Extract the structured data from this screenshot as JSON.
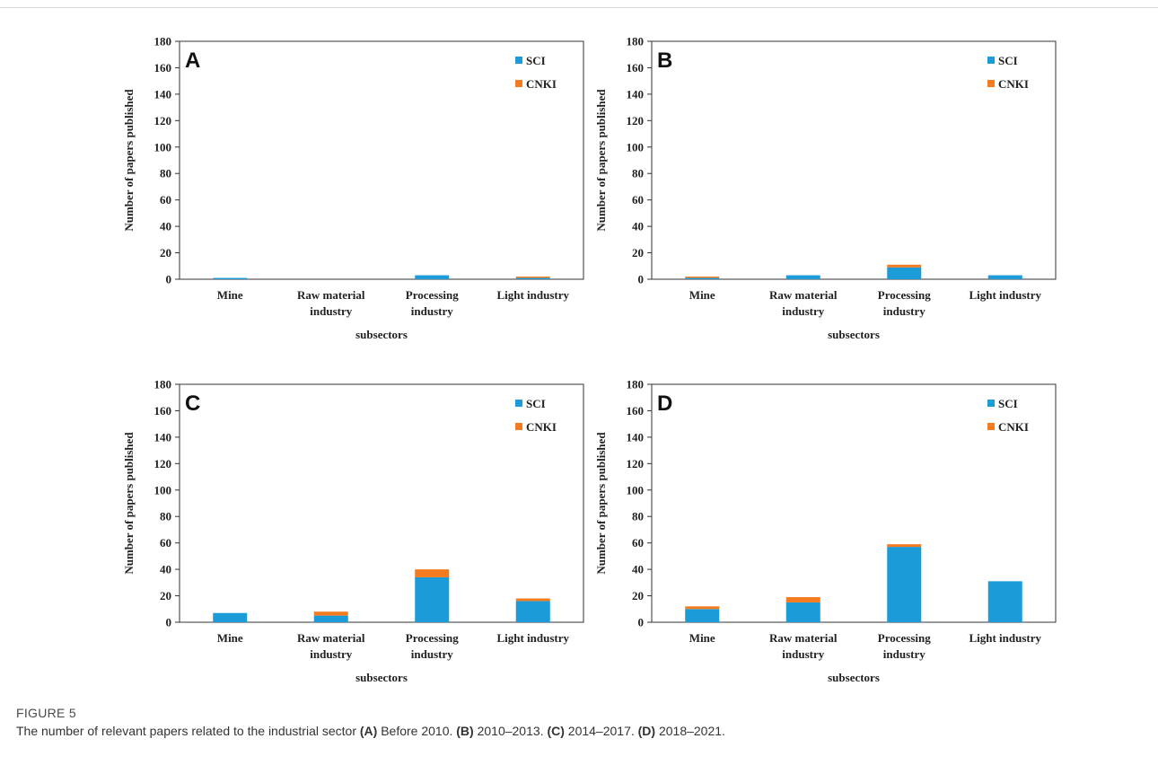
{
  "figure": {
    "label": "FIGURE 5",
    "caption_parts": [
      {
        "text": "The number of relevant papers related to the industrial sector ",
        "bold": false
      },
      {
        "text": "(A)",
        "bold": true
      },
      {
        "text": " Before 2010. ",
        "bold": false
      },
      {
        "text": "(B)",
        "bold": true
      },
      {
        "text": " 2010–2013. ",
        "bold": false
      },
      {
        "text": "(C)",
        "bold": true
      },
      {
        "text": " 2014–2017. ",
        "bold": false
      },
      {
        "text": "(D)",
        "bold": true
      },
      {
        "text": " 2018–2021.",
        "bold": false
      }
    ]
  },
  "colors": {
    "SCI": "#1b9bd7",
    "CNKI": "#f47b20",
    "axis": "#333333"
  },
  "chart_data": [
    {
      "type": "bar",
      "stacked": true,
      "panel_letter": "A",
      "categories": [
        [
          "Mine"
        ],
        [
          "Raw material",
          "industry"
        ],
        [
          "Processing",
          "industry"
        ],
        [
          "Light industry"
        ]
      ],
      "series": [
        {
          "name": "SCI",
          "values": [
            1,
            0,
            3,
            1
          ]
        },
        {
          "name": "CNKI",
          "values": [
            0,
            0,
            0,
            1
          ]
        }
      ],
      "xlabel": "subsectors",
      "ylabel": "Number of papers published",
      "ylim": [
        0,
        180
      ],
      "yticks": [
        0,
        20,
        40,
        60,
        80,
        100,
        120,
        140,
        160,
        180
      ],
      "legend": "top-right",
      "grid": false
    },
    {
      "type": "bar",
      "stacked": true,
      "panel_letter": "B",
      "categories": [
        [
          "Mine"
        ],
        [
          "Raw material",
          "industry"
        ],
        [
          "Processing",
          "industry"
        ],
        [
          "Light industry"
        ]
      ],
      "series": [
        {
          "name": "SCI",
          "values": [
            1,
            3,
            9,
            3
          ]
        },
        {
          "name": "CNKI",
          "values": [
            1,
            0,
            2,
            0
          ]
        }
      ],
      "xlabel": "subsectors",
      "ylabel": "Number of papers published",
      "ylim": [
        0,
        180
      ],
      "yticks": [
        0,
        20,
        40,
        60,
        80,
        100,
        120,
        140,
        160,
        180
      ],
      "legend": "top-right",
      "grid": false
    },
    {
      "type": "bar",
      "stacked": true,
      "panel_letter": "C",
      "categories": [
        [
          "Mine"
        ],
        [
          "Raw material",
          "industry"
        ],
        [
          "Processing",
          "industry"
        ],
        [
          "Light industry"
        ]
      ],
      "series": [
        {
          "name": "SCI",
          "values": [
            7,
            5,
            34,
            16
          ]
        },
        {
          "name": "CNKI",
          "values": [
            0,
            3,
            6,
            2
          ]
        }
      ],
      "xlabel": "subsectors",
      "ylabel": "Number of papers published",
      "ylim": [
        0,
        180
      ],
      "yticks": [
        0,
        20,
        40,
        60,
        80,
        100,
        120,
        140,
        160,
        180
      ],
      "legend": "top-right",
      "grid": false
    },
    {
      "type": "bar",
      "stacked": true,
      "panel_letter": "D",
      "categories": [
        [
          "Mine"
        ],
        [
          "Raw material",
          "industry"
        ],
        [
          "Processing",
          "industry"
        ],
        [
          "Light industry"
        ]
      ],
      "series": [
        {
          "name": "SCI",
          "values": [
            10,
            15,
            57,
            31
          ]
        },
        {
          "name": "CNKI",
          "values": [
            2,
            4,
            2,
            0
          ]
        }
      ],
      "xlabel": "subsectors",
      "ylabel": "Number of papers published",
      "ylim": [
        0,
        180
      ],
      "yticks": [
        0,
        20,
        40,
        60,
        80,
        100,
        120,
        140,
        160,
        180
      ],
      "legend": "top-right",
      "grid": false
    }
  ]
}
